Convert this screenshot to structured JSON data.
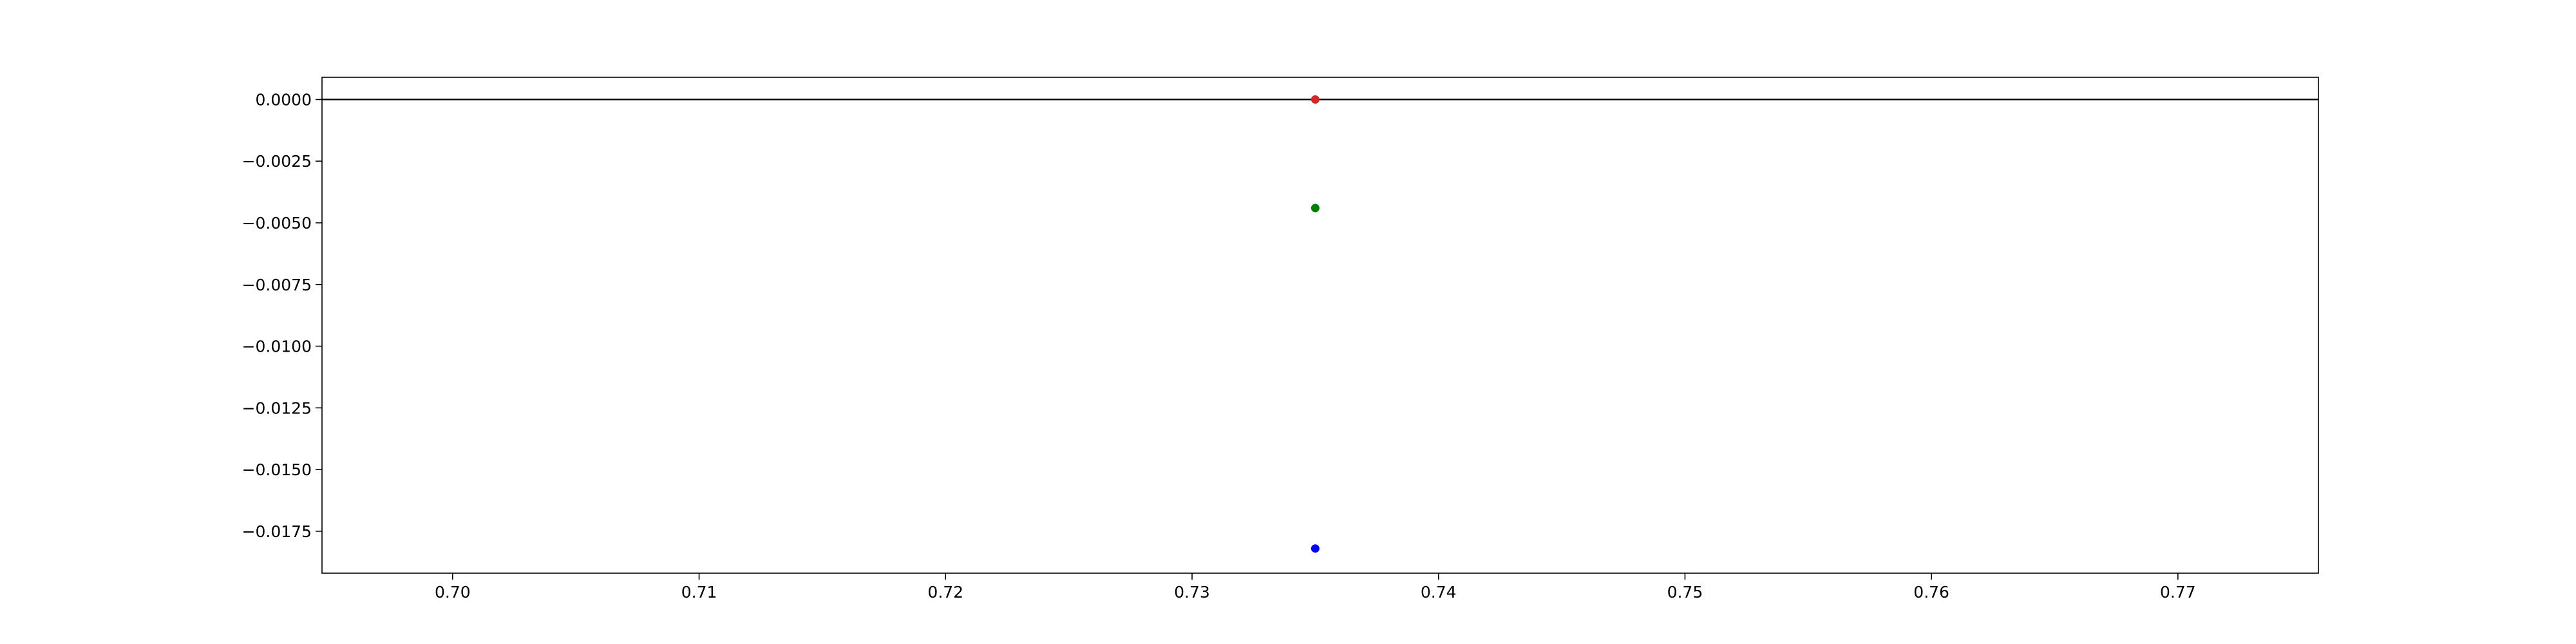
{
  "chart_data": {
    "type": "scatter",
    "title": "",
    "xlabel": "",
    "ylabel": "",
    "xlim": [
      0.6947,
      0.7757
    ],
    "ylim": [
      -0.0192,
      0.0009
    ],
    "grid": false,
    "x_ticks": [
      0.7,
      0.71,
      0.72,
      0.73,
      0.74,
      0.75,
      0.76,
      0.77
    ],
    "x_tick_labels": [
      "0.70",
      "0.71",
      "0.72",
      "0.73",
      "0.74",
      "0.75",
      "0.76",
      "0.77"
    ],
    "y_ticks": [
      0.0,
      -0.0025,
      -0.005,
      -0.0075,
      -0.01,
      -0.0125,
      -0.015,
      -0.0175
    ],
    "y_tick_labels": [
      "0.0000",
      "−0.0025",
      "−0.0050",
      "−0.0075",
      "−0.0100",
      "−0.0125",
      "−0.0150",
      "−0.0175"
    ],
    "reference_line": {
      "type": "horizontal",
      "y": 0.0,
      "color": "#000000"
    },
    "points": [
      {
        "x": 0.735,
        "y": 0.0,
        "color": "#d62728"
      },
      {
        "x": 0.735,
        "y": -0.0044,
        "color": "#008000"
      },
      {
        "x": 0.735,
        "y": -0.0182,
        "color": "#0000ff"
      }
    ]
  }
}
